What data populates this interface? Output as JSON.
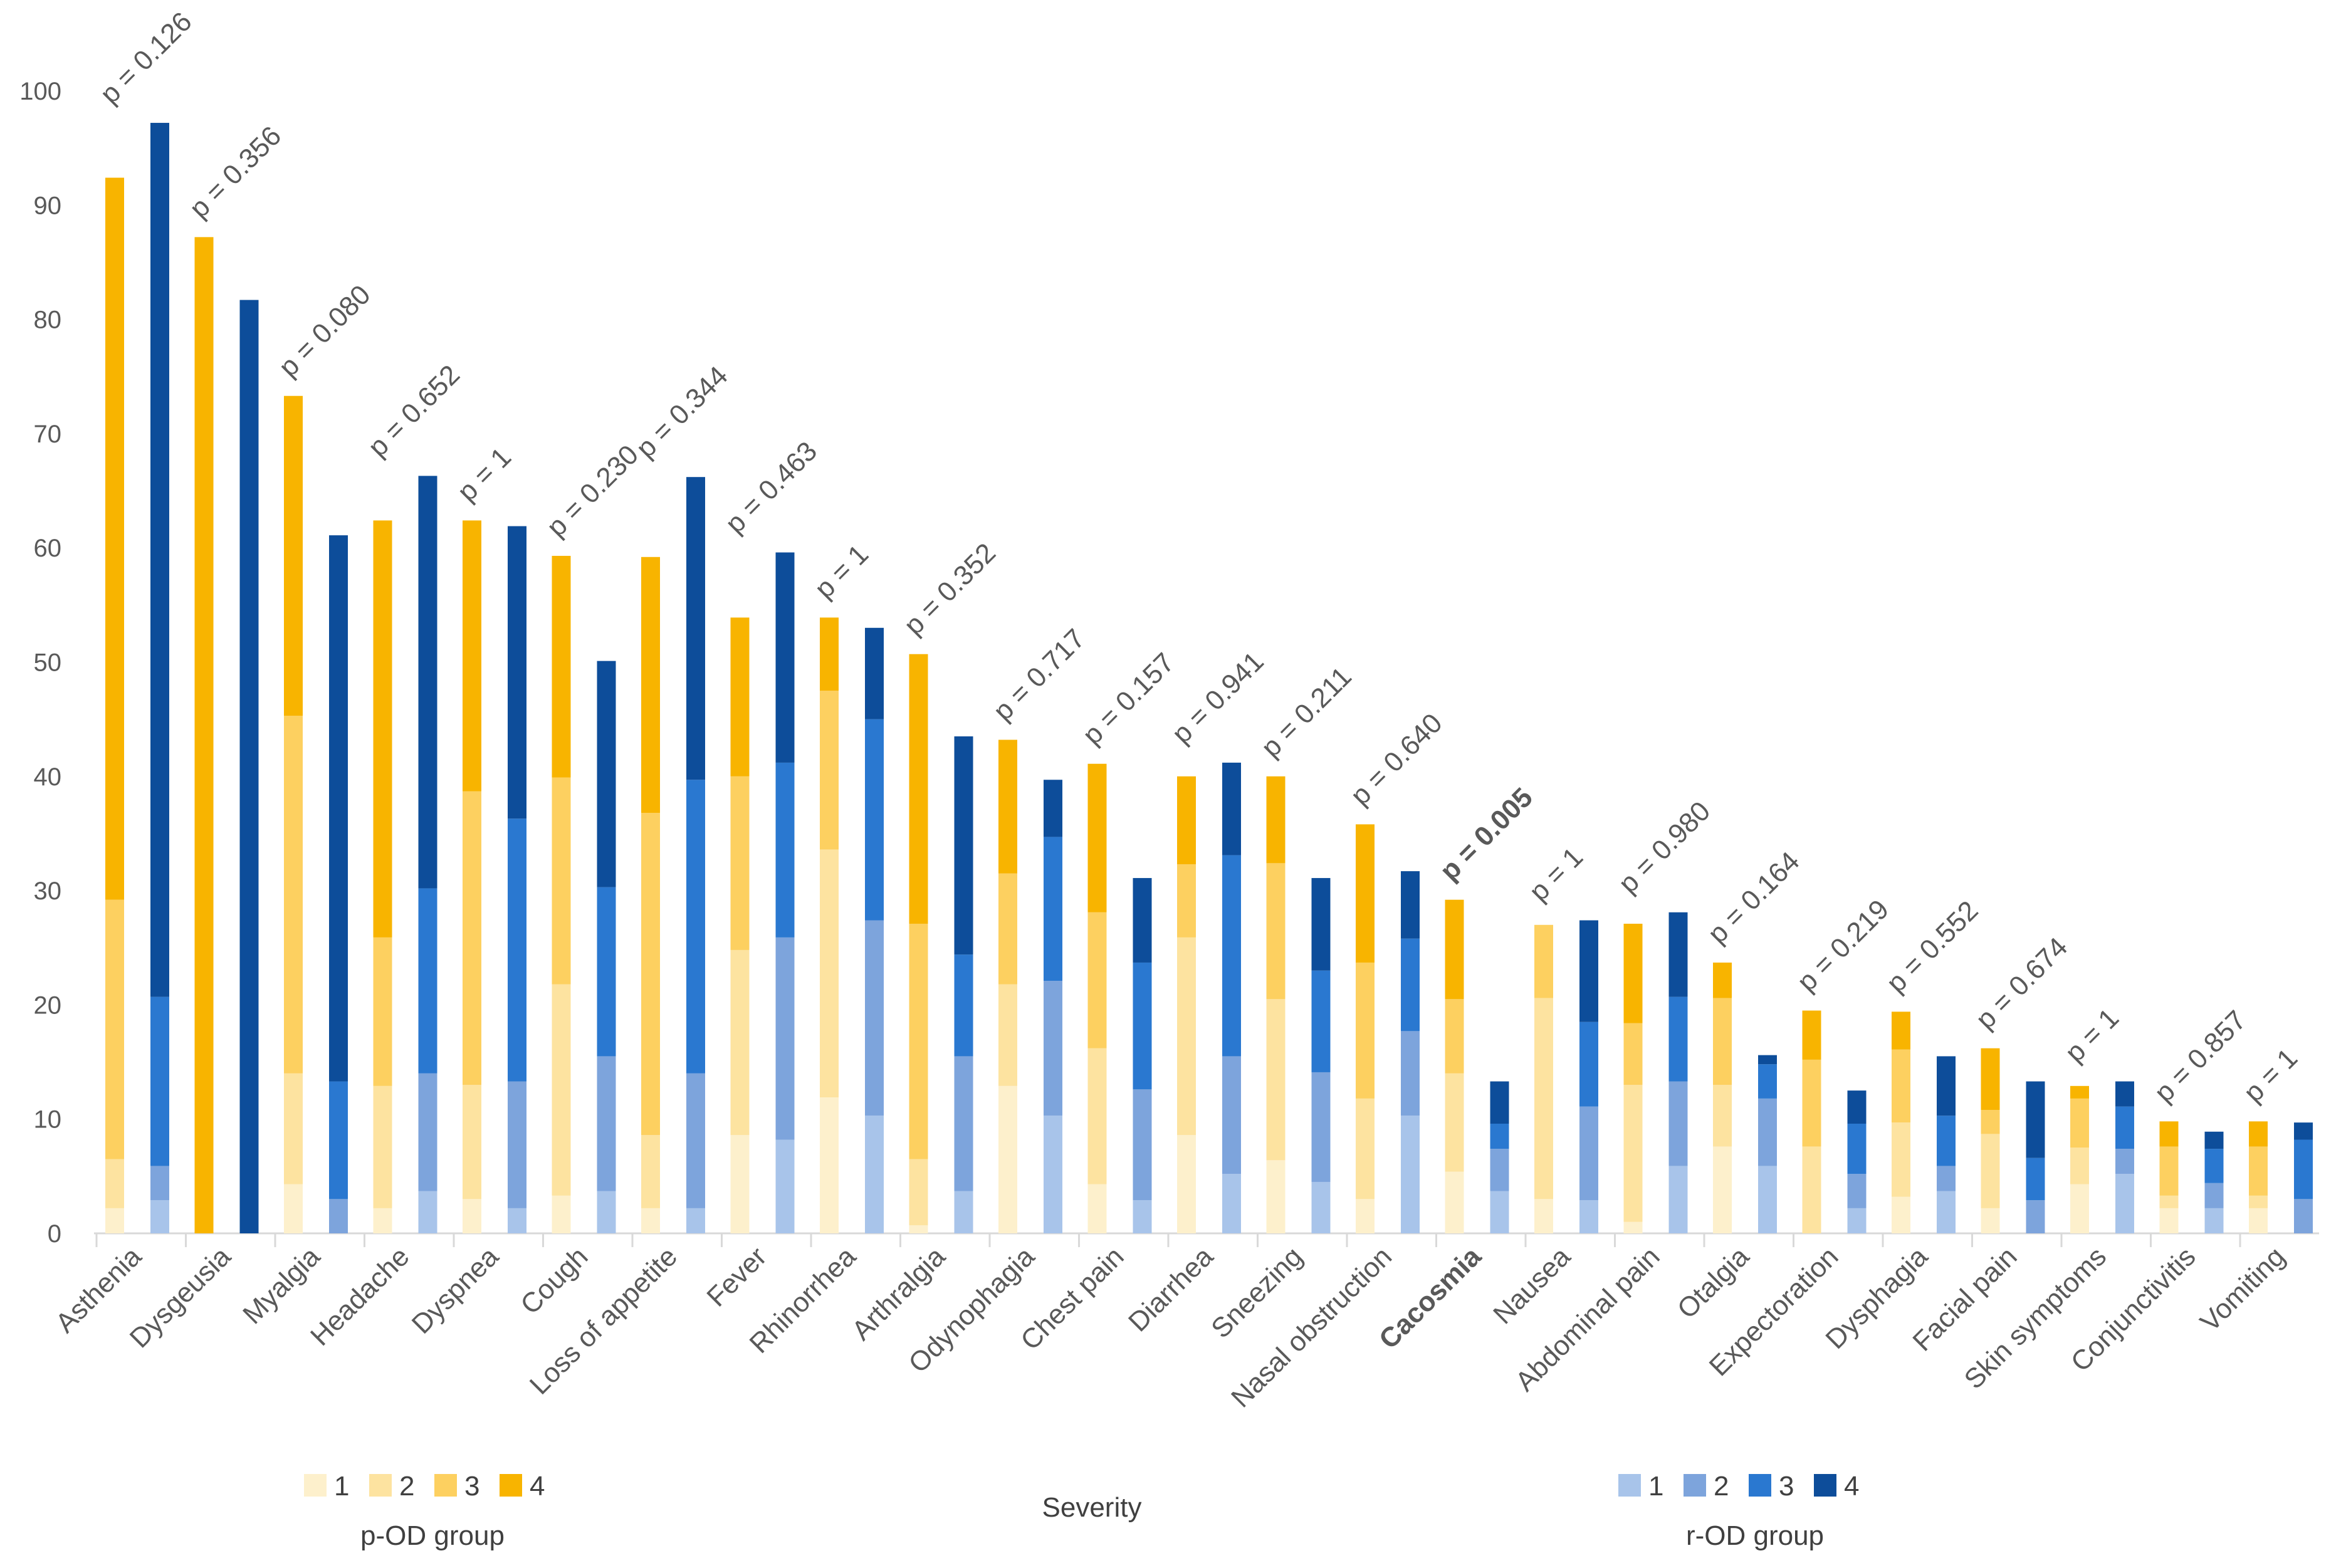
{
  "chart_data": {
    "type": "bar",
    "stacked": true,
    "xlabel": "Severity",
    "ylim": [
      0,
      100
    ],
    "y_ticks": [
      0,
      10,
      20,
      30,
      40,
      50,
      60,
      70,
      80,
      90,
      100
    ],
    "grid": false,
    "groups": [
      {
        "name": "p-OD group",
        "colors": [
          "#fdf0cc",
          "#fde3a0",
          "#fdd060",
          "#f8b400"
        ]
      },
      {
        "name": "r-OD group",
        "colors": [
          "#a8c4ea",
          "#7da4dc",
          "#2a78d0",
          "#0d4d9a"
        ]
      }
    ],
    "severity_levels": [
      "1",
      "2",
      "3",
      "4"
    ],
    "categories": [
      {
        "label": "Asthenia",
        "p": "p = 0.126",
        "bold": false,
        "pOD": [
          2.2,
          4.3,
          22.7,
          63.2
        ],
        "rOD": [
          2.9,
          3.0,
          14.8,
          76.5
        ]
      },
      {
        "label": "Dysgeusia",
        "p": "p = 0.356",
        "bold": false,
        "pOD": [
          0,
          0,
          0,
          87.2
        ],
        "rOD": [
          0,
          0,
          0,
          81.7
        ]
      },
      {
        "label": "Myalgia",
        "p": "p = 0.080",
        "bold": false,
        "pOD": [
          4.3,
          9.7,
          31.3,
          28.0
        ],
        "rOD": [
          0,
          3.0,
          10.3,
          47.8
        ]
      },
      {
        "label": "Headache",
        "p": "p = 0.652",
        "bold": false,
        "pOD": [
          2.2,
          10.7,
          13.0,
          36.5
        ],
        "rOD": [
          3.7,
          10.3,
          16.2,
          36.1
        ]
      },
      {
        "label": "Dyspnea",
        "p": "p = 1",
        "bold": false,
        "pOD": [
          3.0,
          10.0,
          25.7,
          23.7
        ],
        "rOD": [
          2.2,
          11.1,
          23.0,
          25.6
        ]
      },
      {
        "label": "Cough",
        "p": "p = 0.230",
        "bold": false,
        "pOD": [
          3.3,
          18.5,
          18.1,
          19.4
        ],
        "rOD": [
          3.7,
          11.8,
          14.8,
          19.8
        ]
      },
      {
        "label": "Loss of appetite",
        "p": "p = 0.344",
        "bold": false,
        "pOD": [
          2.2,
          6.4,
          28.2,
          22.4
        ],
        "rOD": [
          2.2,
          11.8,
          25.7,
          26.5
        ]
      },
      {
        "label": "Fever",
        "p": "p = 0.463",
        "bold": false,
        "pOD": [
          8.6,
          16.2,
          15.2,
          13.9
        ],
        "rOD": [
          8.2,
          17.7,
          15.3,
          18.4
        ]
      },
      {
        "label": "Rhinorrhea",
        "p": "p = 1",
        "bold": false,
        "pOD": [
          11.9,
          21.7,
          13.9,
          6.4
        ],
        "rOD": [
          10.3,
          17.1,
          17.6,
          8.0
        ]
      },
      {
        "label": "Arthralgia",
        "p": "p = 0.352",
        "bold": false,
        "pOD": [
          0.7,
          5.8,
          20.6,
          23.6
        ],
        "rOD": [
          3.7,
          11.8,
          8.9,
          19.1
        ]
      },
      {
        "label": "Odynophagia",
        "p": "p = 0.717",
        "bold": false,
        "pOD": [
          12.9,
          8.9,
          9.7,
          11.7
        ],
        "rOD": [
          10.3,
          11.8,
          12.6,
          5.0
        ]
      },
      {
        "label": "Chest pain",
        "p": "p = 0.157",
        "bold": false,
        "pOD": [
          4.3,
          11.9,
          11.9,
          13.0
        ],
        "rOD": [
          2.9,
          9.7,
          11.1,
          7.4
        ]
      },
      {
        "label": "Diarrhea",
        "p": "p = 0.941",
        "bold": false,
        "pOD": [
          8.6,
          17.3,
          6.4,
          7.7
        ],
        "rOD": [
          5.2,
          10.3,
          17.6,
          8.1
        ]
      },
      {
        "label": "Sneezing",
        "p": "p = 0.211",
        "bold": false,
        "pOD": [
          6.4,
          14.1,
          11.9,
          7.6
        ],
        "rOD": [
          4.5,
          9.6,
          8.9,
          8.1
        ]
      },
      {
        "label": "Nasal obstruction",
        "p": "p = 0.640",
        "bold": false,
        "pOD": [
          3.0,
          8.8,
          11.9,
          12.1
        ],
        "rOD": [
          10.3,
          7.4,
          8.1,
          5.9
        ]
      },
      {
        "label": "Cacosmia",
        "p": "p = 0.005",
        "bold": true,
        "pOD": [
          5.4,
          8.6,
          6.5,
          8.7
        ],
        "rOD": [
          3.7,
          3.7,
          2.2,
          3.7
        ]
      },
      {
        "label": "Nausea",
        "p": "p = 1",
        "bold": false,
        "pOD": [
          3.0,
          17.6,
          6.4,
          0
        ],
        "rOD": [
          2.9,
          8.2,
          7.4,
          8.9
        ]
      },
      {
        "label": "Abdominal pain",
        "p": "p = 0.980",
        "bold": false,
        "pOD": [
          1.0,
          12.0,
          5.4,
          8.7
        ],
        "rOD": [
          5.9,
          7.4,
          7.4,
          7.4
        ]
      },
      {
        "label": "Otalgia",
        "p": "p = 0.164",
        "bold": false,
        "pOD": [
          7.6,
          5.4,
          7.6,
          3.1
        ],
        "rOD": [
          5.9,
          5.9,
          3.0,
          0.8
        ]
      },
      {
        "label": "Expectoration",
        "p": "p = 0.219",
        "bold": false,
        "pOD": [
          0,
          7.6,
          7.6,
          4.3
        ],
        "rOD": [
          2.2,
          3.0,
          4.4,
          2.9
        ]
      },
      {
        "label": "Dysphagia",
        "p": "p = 0.552",
        "bold": false,
        "pOD": [
          3.2,
          6.5,
          6.4,
          3.3
        ],
        "rOD": [
          3.7,
          2.2,
          4.4,
          5.2
        ]
      },
      {
        "label": "Facial pain",
        "p": "p = 0.674",
        "bold": false,
        "pOD": [
          2.2,
          6.5,
          2.1,
          5.4
        ],
        "rOD": [
          0,
          2.9,
          3.7,
          6.7
        ]
      },
      {
        "label": "Skin symptoms",
        "p": "p = 1",
        "bold": false,
        "pOD": [
          4.3,
          3.2,
          4.3,
          1.1
        ],
        "rOD": [
          5.2,
          2.2,
          3.7,
          2.2
        ]
      },
      {
        "label": "Conjunctivitis",
        "p": "p = 0.857",
        "bold": false,
        "pOD": [
          2.2,
          1.1,
          4.3,
          2.2
        ],
        "rOD": [
          2.2,
          2.2,
          3.0,
          1.5
        ]
      },
      {
        "label": "Vomiting",
        "p": "p = 1",
        "bold": false,
        "pOD": [
          2.2,
          1.1,
          4.3,
          2.2
        ],
        "rOD": [
          0,
          3.0,
          5.2,
          1.5
        ]
      }
    ]
  }
}
